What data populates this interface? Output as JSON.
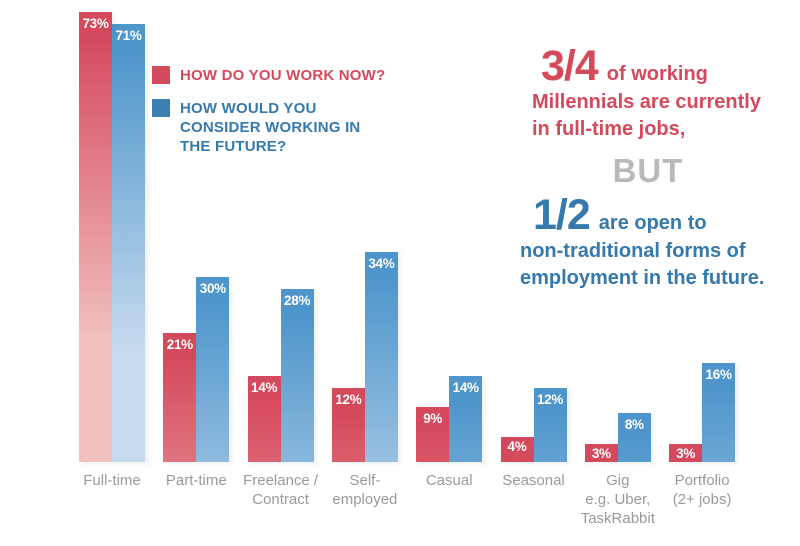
{
  "colors": {
    "now_bar": "#d5495c",
    "now_bar_light": "#f1c1bf",
    "future_bar": "#4d95cb",
    "future_bar_light": "#c8dbee",
    "now_text": "#d5495c",
    "future_text": "#3579ad",
    "future_swatch": "#3d80b4",
    "but_gray": "#b9b9b9",
    "axis_label": "#9a9a9a",
    "value_label": "#ffffff",
    "background": "#ffffff"
  },
  "legend": {
    "now_label": "HOW DO YOU WORK NOW?",
    "future_label": "HOW WOULD YOU CONSIDER WORKING IN THE FUTURE?"
  },
  "annotation": {
    "stat1_value": "3/4",
    "stat1_lead": "of working",
    "stat1_line2": "Millennials are currently",
    "stat1_line3": "in full-time jobs,",
    "connector": "BUT",
    "stat2_value": "1/2",
    "stat2_lead": "are open to",
    "stat2_line2": "non-traditional forms of",
    "stat2_line3": "employment in the future."
  },
  "chart_data": {
    "type": "bar",
    "categories": [
      "Full-time",
      "Part-time",
      "Freelance / Contract",
      "Self-employed",
      "Casual",
      "Seasonal",
      "Gig e.g. Uber, TaskRabbit",
      "Portfolio (2+ jobs)"
    ],
    "category_lines": [
      [
        "Full-time"
      ],
      [
        "Part-time"
      ],
      [
        "Freelance /",
        "Contract"
      ],
      [
        "Self-",
        "employed"
      ],
      [
        "Casual"
      ],
      [
        "Seasonal"
      ],
      [
        "Gig",
        "e.g. Uber,",
        "TaskRabbit"
      ],
      [
        "Portfolio",
        "(2+ jobs)"
      ]
    ],
    "series": [
      {
        "name": "HOW DO YOU WORK NOW?",
        "key": "now",
        "color": "#d5495c",
        "color_light": "#f1c1bf",
        "values": [
          73,
          21,
          14,
          12,
          9,
          4,
          3,
          3
        ]
      },
      {
        "name": "HOW WOULD YOU CONSIDER WORKING IN THE FUTURE?",
        "key": "future",
        "color": "#4d95cb",
        "color_light": "#c8dbee",
        "values": [
          71,
          30,
          28,
          34,
          14,
          12,
          8,
          16
        ]
      }
    ],
    "value_suffix": "%",
    "value_label_position": "inside-top",
    "value_label_color": "#ffffff",
    "axis": {
      "y_max": 73,
      "y_axis_visible": false,
      "gridlines": false
    },
    "legend_position": "upper-left-of-plot",
    "bar_style": "vertical-gradient-fade-to-light"
  }
}
